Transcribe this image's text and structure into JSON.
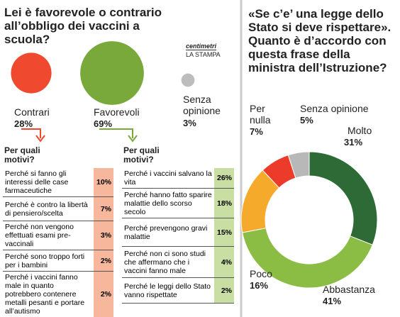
{
  "chart_data": [
    {
      "type": "bubble",
      "title": "Lei è favorevole o contrario all’obbligo dei vaccini a scuola?",
      "categories": [
        "Contrari",
        "Favorevoli",
        "Senza opinione"
      ],
      "values": [
        28,
        69,
        3
      ],
      "value_labels": [
        "28%",
        "69%",
        "3%"
      ],
      "colors": [
        "#ef4a30",
        "#78a93a",
        "#bdbdbd"
      ]
    },
    {
      "type": "donut",
      "title": "«Se c’e’ una legge dello Stato si deve rispettare». Quanto è d’accordo con questa frase della ministra dell’Istruzione?",
      "categories": [
        "Molto",
        "Abbastanza",
        "Poco",
        "Per nulla",
        "Senza opinione"
      ],
      "values": [
        31,
        41,
        16,
        7,
        5
      ],
      "value_labels": [
        "31%",
        "41%",
        "16%",
        "7%",
        "5%"
      ],
      "colors": [
        "#2e6a35",
        "#8bbd45",
        "#f6aa2c",
        "#ec3b2a",
        "#b8b8b8"
      ]
    }
  ],
  "source": {
    "brand": "centimetri",
    "outlet": "LA STAMPA"
  },
  "tables": [
    {
      "header": "Per quali motivi?",
      "rows": [
        [
          "Perché si fanno gli interessi delle case farmaceutiche",
          "10%"
        ],
        [
          "Perché è contro la libertà di pensiero/scelta",
          "7%"
        ],
        [
          "Perché non vengono effettuati esami pre-vaccinali",
          "3%"
        ],
        [
          "Perché sono troppo forti per i bambini",
          "2%"
        ],
        [
          "Perché i vaccini fanno male in quanto potrebbero contenere metalli pesanti e portare all’autismo",
          "2%"
        ]
      ]
    },
    {
      "header": "Per quali motivi?",
      "rows": [
        [
          "Perché i vaccini salvano la vita",
          "26%"
        ],
        [
          "Perché hanno fatto sparire malattie dello scorso secolo",
          "18%"
        ],
        [
          "Perché prevengono gravi malattie",
          "15%"
        ],
        [
          "Perché non ci sono studi che affermano che i vaccini fanno male",
          "4%"
        ],
        [
          "Perché le leggi dello Stato vanno rispettate",
          "2%"
        ]
      ]
    }
  ]
}
